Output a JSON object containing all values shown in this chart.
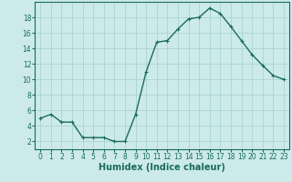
{
  "x": [
    0,
    1,
    2,
    3,
    4,
    5,
    6,
    7,
    8,
    9,
    10,
    11,
    12,
    13,
    14,
    15,
    16,
    17,
    18,
    19,
    20,
    21,
    22,
    23
  ],
  "y": [
    5.0,
    5.5,
    4.5,
    4.5,
    2.5,
    2.5,
    2.5,
    2.0,
    2.0,
    5.5,
    11.0,
    14.8,
    15.0,
    16.5,
    17.8,
    18.0,
    19.2,
    18.5,
    16.8,
    15.0,
    13.2,
    11.8,
    10.5,
    10.0
  ],
  "line_color": "#1a6b5a",
  "marker": "+",
  "bg_color": "#cceaea",
  "grid_color": "#aad4d4",
  "xlabel": "Humidex (Indice chaleur)",
  "ylim": [
    1,
    20
  ],
  "yticks": [
    2,
    4,
    6,
    8,
    10,
    12,
    14,
    16,
    18
  ],
  "xticks": [
    0,
    1,
    2,
    3,
    4,
    5,
    6,
    7,
    8,
    9,
    10,
    11,
    12,
    13,
    14,
    15,
    16,
    17,
    18,
    19,
    20,
    21,
    22,
    23
  ],
  "tick_color": "#1a6b5a",
  "tick_fontsize": 5.5,
  "xlabel_fontsize": 7,
  "linewidth": 1.0,
  "markersize": 3.5,
  "spine_color": "#1a6b5a"
}
